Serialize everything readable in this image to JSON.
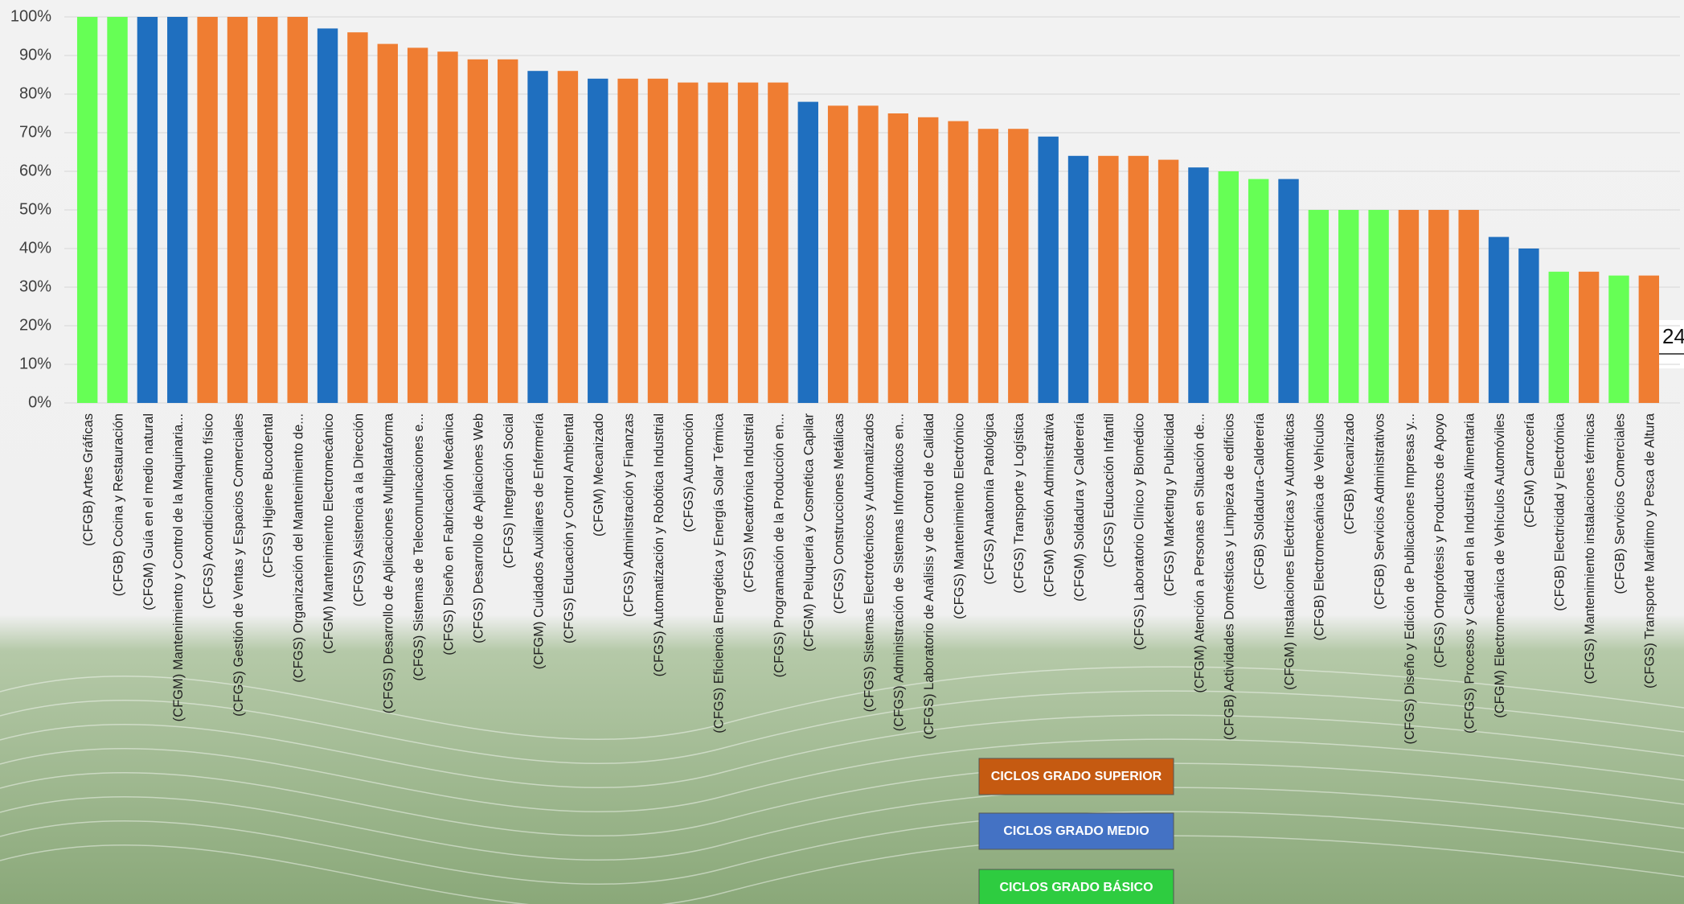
{
  "chart_data": {
    "type": "bar",
    "categories": [
      "(CFGB) Artes Gráficas",
      "(CFGB) Cocina y Restauración",
      "(CFGM) Guía en el medio natural",
      "(CFGM) Mantenimiento y Control de la Maquinaria...",
      "(CFGS) Acondicionamiento físico",
      "(CFGS) Gestión de Ventas y Espacios Comerciales",
      "(CFGS) Higiene Bucodental",
      "(CFGS) Organización del Mantenimiento de...",
      "(CFGM) Mantenimiento Electromecánico",
      "(CFGS) Asistencia a la Dirección",
      "(CFGS) Desarrollo de Aplicaciones Multiplataforma",
      "(CFGS) Sistemas de Telecomunicaciones e...",
      "(CFGS) Diseño en Fabricación Mecánica",
      "(CFGS) Desarrollo de Apliaciones Web",
      "(CFGS) Integración Social",
      "(CFGM) Cuidados Auxiliares de Enfermería",
      "(CFGS) Educación y Control Ambiental",
      "(CFGM) Mecanizado",
      "(CFGS) Administración y Finanzas",
      "(CFGS) Automatización y Robótica Industrial",
      "(CFGS) Automoción",
      "(CFGS) Eficiencia Energética y Energía Solar Térmica",
      "(CFGS) Mecatrónica Industrial",
      "(CFGS) Programación de la Producción en...",
      "(CFGM) Peluquería y Cosmética Capilar",
      "(CFGS) Construcciones Metálicas",
      "(CFGS) Sistemas Electrotécnicos y Automatizados",
      "(CFGS) Administración de Sistemas Informáticos en...",
      "(CFGS) Laboratorio de Análisis y de Control de Calidad",
      "(CFGS) Mantenimiento Electrónico",
      "(CFGS) Anatomía Patológica",
      "(CFGS) Transporte y Logística",
      "(CFGM) Gestión Administrativa",
      "(CFGM) Soldadura y Calderería",
      "(CFGS) Educación Infantil",
      "(CFGS) Laboratorio Clínico y Biomédico",
      "(CFGS) Marketing y Publicidad",
      "(CFGM) Atención a Personas en Situación de...",
      "(CFGB) Actividades Domésticas y Limpieza de edificios",
      "(CFGB) Soldadura-Calderería",
      "(CFGM) Instalaciones Eléctricas y Automáticas",
      "(CFGB) Electromecánica de Vehículos",
      "(CFGB) Mecanizado",
      "(CFGB) Servicios Administrativos",
      "(CFGS) Diseño y Edición de Publicaciones Impresas y...",
      "(CFGS) Ortoprótesis y Productos de Apoyo",
      "(CFGS) Procesos y Calidad en la Industria Alimentaria",
      "(CFGM) Electromecánica de Vehículos Automóviles",
      "(CFGM) Carrocería",
      "(CFGB) Electricidad y Electrónica",
      "(CFGS) Mantenimiento instalaciones térmicas",
      "(CFGB) Servicios Comerciales",
      "(CFGS) Transporte Marítimo y Pesca de Altura"
    ],
    "values": [
      100,
      100,
      100,
      100,
      100,
      100,
      100,
      100,
      97,
      96,
      93,
      92,
      91,
      89,
      89,
      86,
      86,
      84,
      84,
      84,
      83,
      83,
      83,
      83,
      78,
      77,
      77,
      75,
      74,
      73,
      71,
      71,
      69,
      64,
      64,
      64,
      63,
      61,
      60,
      58,
      58,
      50,
      50,
      50,
      50,
      50,
      50,
      43,
      40,
      34,
      34,
      33,
      33
    ],
    "colors": [
      "#66ff55",
      "#66ff55",
      "#1f6fbf",
      "#1f6fbf",
      "#ef7d32",
      "#ef7d32",
      "#ef7d32",
      "#ef7d32",
      "#1f6fbf",
      "#ef7d32",
      "#ef7d32",
      "#ef7d32",
      "#ef7d32",
      "#ef7d32",
      "#ef7d32",
      "#1f6fbf",
      "#ef7d32",
      "#1f6fbf",
      "#ef7d32",
      "#ef7d32",
      "#ef7d32",
      "#ef7d32",
      "#ef7d32",
      "#ef7d32",
      "#1f6fbf",
      "#ef7d32",
      "#ef7d32",
      "#ef7d32",
      "#ef7d32",
      "#ef7d32",
      "#ef7d32",
      "#ef7d32",
      "#1f6fbf",
      "#1f6fbf",
      "#ef7d32",
      "#ef7d32",
      "#ef7d32",
      "#1f6fbf",
      "#66ff55",
      "#66ff55",
      "#1f6fbf",
      "#66ff55",
      "#66ff55",
      "#66ff55",
      "#ef7d32",
      "#ef7d32",
      "#ef7d32",
      "#1f6fbf",
      "#1f6fbf",
      "#66ff55",
      "#ef7d32",
      "#66ff55",
      "#ef7d32"
    ],
    "ylim": [
      0,
      100
    ],
    "yticks": [
      {
        "value": 0,
        "label": "0%"
      },
      {
        "value": 10,
        "label": "10%"
      },
      {
        "value": 20,
        "label": "20%"
      },
      {
        "value": 30,
        "label": "30%"
      },
      {
        "value": 40,
        "label": "40%"
      },
      {
        "value": 50,
        "label": "50%"
      },
      {
        "value": 60,
        "label": "60%"
      },
      {
        "value": 70,
        "label": "70%"
      },
      {
        "value": 80,
        "label": "80%"
      },
      {
        "value": 90,
        "label": "90%"
      },
      {
        "value": 100,
        "label": "100%"
      }
    ],
    "grid": true,
    "legend": [
      {
        "name": "CICLOS GRADO SUPERIOR",
        "color": "#c55a11"
      },
      {
        "name": "CICLOS GRADO MEDIO",
        "color": "#4472c4"
      },
      {
        "name": "CICLOS GRADO BÁSICO",
        "color": "#2ecc40"
      }
    ],
    "side_label": "24"
  }
}
